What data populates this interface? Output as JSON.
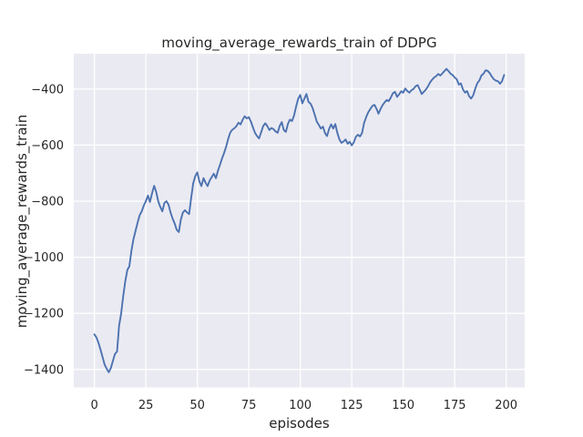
{
  "figure": {
    "background": "#ffffff"
  },
  "chart_data": {
    "type": "line",
    "title": "moving_average_rewards_train of DDPG",
    "xlabel": "episodes",
    "ylabel": "moving_average_rewards_train",
    "legend": null,
    "grid": true,
    "axes_background": "#EAEAF2",
    "grid_color": "#FFFFFF",
    "text_color": "#262626",
    "xlim": [
      -10,
      209
    ],
    "ylim": [
      -1464,
      -274
    ],
    "x_ticks": [
      0,
      25,
      50,
      75,
      100,
      125,
      150,
      175,
      200
    ],
    "x_tick_labels": [
      "0",
      "25",
      "50",
      "75",
      "100",
      "125",
      "150",
      "175",
      "200"
    ],
    "y_ticks": [
      -400,
      -600,
      -800,
      -1000,
      -1200,
      -1400
    ],
    "y_tick_labels": [
      "−400",
      "−600",
      "−800",
      "−1000",
      "−1200",
      "−1400"
    ],
    "series": [
      {
        "name": "moving_average_rewards_train",
        "color": "#4C72B0",
        "x_start": 0,
        "x_step": 1,
        "values": [
          -1275,
          -1286,
          -1305,
          -1330,
          -1356,
          -1383,
          -1398,
          -1410,
          -1395,
          -1370,
          -1345,
          -1336,
          -1245,
          -1200,
          -1140,
          -1086,
          -1045,
          -1032,
          -976,
          -936,
          -906,
          -876,
          -850,
          -836,
          -816,
          -800,
          -780,
          -803,
          -772,
          -745,
          -766,
          -800,
          -820,
          -836,
          -806,
          -800,
          -812,
          -840,
          -862,
          -880,
          -902,
          -910,
          -866,
          -840,
          -832,
          -840,
          -846,
          -790,
          -736,
          -710,
          -697,
          -730,
          -746,
          -718,
          -734,
          -746,
          -726,
          -714,
          -702,
          -718,
          -692,
          -670,
          -648,
          -628,
          -605,
          -578,
          -555,
          -545,
          -540,
          -532,
          -520,
          -526,
          -510,
          -497,
          -505,
          -500,
          -516,
          -536,
          -556,
          -568,
          -576,
          -554,
          -532,
          -522,
          -532,
          -546,
          -539,
          -543,
          -551,
          -556,
          -532,
          -518,
          -546,
          -553,
          -524,
          -509,
          -514,
          -494,
          -462,
          -434,
          -421,
          -451,
          -434,
          -418,
          -446,
          -452,
          -468,
          -492,
          -516,
          -528,
          -541,
          -534,
          -557,
          -568,
          -542,
          -526,
          -541,
          -525,
          -556,
          -580,
          -592,
          -587,
          -580,
          -595,
          -588,
          -601,
          -590,
          -570,
          -563,
          -569,
          -557,
          -521,
          -500,
          -483,
          -471,
          -461,
          -456,
          -470,
          -488,
          -471,
          -457,
          -447,
          -439,
          -443,
          -430,
          -415,
          -410,
          -428,
          -419,
          -408,
          -413,
          -398,
          -407,
          -413,
          -404,
          -400,
          -390,
          -386,
          -401,
          -418,
          -410,
          -402,
          -391,
          -377,
          -367,
          -359,
          -354,
          -346,
          -352,
          -344,
          -336,
          -328,
          -336,
          -345,
          -350,
          -359,
          -365,
          -384,
          -380,
          -401,
          -413,
          -407,
          -426,
          -434,
          -422,
          -398,
          -379,
          -369,
          -352,
          -345,
          -333,
          -335,
          -343,
          -355,
          -365,
          -370,
          -372,
          -381,
          -372,
          -350
        ]
      }
    ]
  }
}
